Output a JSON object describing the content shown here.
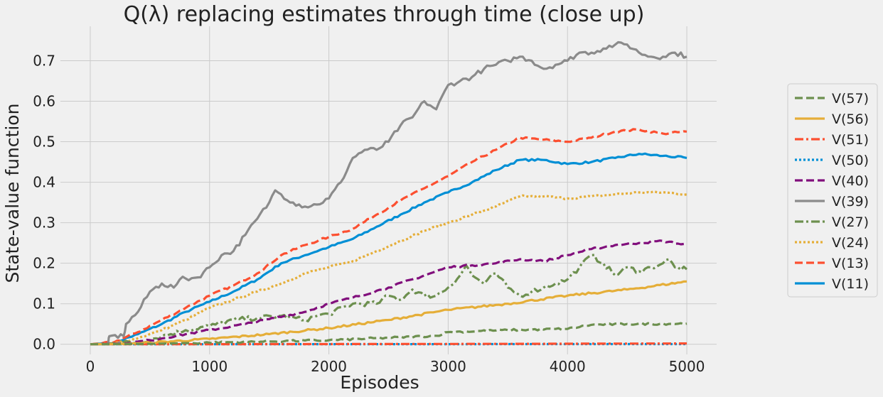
{
  "chart_data": {
    "type": "line",
    "title": "Q(λ) replacing estimates through time (close up)",
    "xlabel": "Episodes",
    "ylabel": "State-value function",
    "xlim": [
      -250,
      5250
    ],
    "ylim": [
      -0.025,
      0.785
    ],
    "xticks": [
      0,
      1000,
      2000,
      3000,
      4000,
      5000
    ],
    "yticks": [
      0.0,
      0.1,
      0.2,
      0.3,
      0.4,
      0.5,
      0.6,
      0.7
    ],
    "grid": true,
    "legend_position": "center-right",
    "series": [
      {
        "name": "V(57)",
        "color": "#6d904f",
        "dash": "dashed",
        "points": [
          [
            0,
            0
          ],
          [
            500,
            0.001
          ],
          [
            1000,
            0.004
          ],
          [
            1500,
            0.007
          ],
          [
            2000,
            0.01
          ],
          [
            2500,
            0.016
          ],
          [
            2900,
            0.021
          ],
          [
            3000,
            0.03
          ],
          [
            3500,
            0.035
          ],
          [
            4000,
            0.038
          ],
          [
            4200,
            0.048
          ],
          [
            4500,
            0.05
          ],
          [
            5000,
            0.051
          ]
        ]
      },
      {
        "name": "V(56)",
        "color": "#e5ae38",
        "dash": "solid",
        "points": [
          [
            0,
            0
          ],
          [
            300,
            0.001
          ],
          [
            500,
            0.004
          ],
          [
            1000,
            0.013
          ],
          [
            1500,
            0.025
          ],
          [
            2000,
            0.04
          ],
          [
            2500,
            0.06
          ],
          [
            3000,
            0.085
          ],
          [
            3500,
            0.1
          ],
          [
            4000,
            0.12
          ],
          [
            4500,
            0.135
          ],
          [
            5000,
            0.155
          ]
        ]
      },
      {
        "name": "V(51)",
        "color": "#fc4f30",
        "dash": "dashdot",
        "points": [
          [
            0,
            0
          ],
          [
            2000,
            0.0005
          ],
          [
            3500,
            0.001
          ],
          [
            5000,
            0.002
          ]
        ]
      },
      {
        "name": "V(50)",
        "color": "#008fd5",
        "dash": "dotted",
        "points": [
          [
            0,
            0
          ],
          [
            5000,
            0.0005
          ]
        ]
      },
      {
        "name": "V(40)",
        "color": "#810f7c",
        "dash": "dashed",
        "points": [
          [
            0,
            0
          ],
          [
            300,
            0.002
          ],
          [
            500,
            0.01
          ],
          [
            800,
            0.025
          ],
          [
            1000,
            0.035
          ],
          [
            1300,
            0.05
          ],
          [
            1500,
            0.062
          ],
          [
            1800,
            0.08
          ],
          [
            2000,
            0.1
          ],
          [
            2200,
            0.115
          ],
          [
            2500,
            0.14
          ],
          [
            2800,
            0.17
          ],
          [
            3000,
            0.19
          ],
          [
            3200,
            0.195
          ],
          [
            3400,
            0.2
          ],
          [
            3600,
            0.21
          ],
          [
            3800,
            0.205
          ],
          [
            4000,
            0.22
          ],
          [
            4200,
            0.235
          ],
          [
            4400,
            0.245
          ],
          [
            4600,
            0.25
          ],
          [
            4800,
            0.255
          ],
          [
            5000,
            0.245
          ]
        ]
      },
      {
        "name": "V(39)",
        "color": "#8b8b8b",
        "dash": "solid",
        "points": [
          [
            0,
            0
          ],
          [
            150,
            0.0
          ],
          [
            160,
            0.02
          ],
          [
            280,
            0.02
          ],
          [
            300,
            0.05
          ],
          [
            400,
            0.08
          ],
          [
            500,
            0.13
          ],
          [
            600,
            0.15
          ],
          [
            700,
            0.14
          ],
          [
            750,
            0.16
          ],
          [
            900,
            0.165
          ],
          [
            1000,
            0.19
          ],
          [
            1100,
            0.22
          ],
          [
            1200,
            0.23
          ],
          [
            1300,
            0.27
          ],
          [
            1400,
            0.31
          ],
          [
            1500,
            0.35
          ],
          [
            1550,
            0.38
          ],
          [
            1600,
            0.37
          ],
          [
            1700,
            0.35
          ],
          [
            1800,
            0.34
          ],
          [
            1900,
            0.345
          ],
          [
            2000,
            0.36
          ],
          [
            2100,
            0.4
          ],
          [
            2200,
            0.46
          ],
          [
            2300,
            0.48
          ],
          [
            2400,
            0.48
          ],
          [
            2500,
            0.5
          ],
          [
            2600,
            0.54
          ],
          [
            2700,
            0.56
          ],
          [
            2800,
            0.6
          ],
          [
            2900,
            0.58
          ],
          [
            3000,
            0.64
          ],
          [
            3100,
            0.65
          ],
          [
            3200,
            0.66
          ],
          [
            3300,
            0.68
          ],
          [
            3400,
            0.69
          ],
          [
            3500,
            0.7
          ],
          [
            3600,
            0.71
          ],
          [
            3700,
            0.7
          ],
          [
            3800,
            0.68
          ],
          [
            3900,
            0.69
          ],
          [
            4000,
            0.7
          ],
          [
            4100,
            0.72
          ],
          [
            4200,
            0.72
          ],
          [
            4300,
            0.73
          ],
          [
            4400,
            0.74
          ],
          [
            4500,
            0.74
          ],
          [
            4600,
            0.72
          ],
          [
            4700,
            0.71
          ],
          [
            4800,
            0.71
          ],
          [
            4900,
            0.72
          ],
          [
            5000,
            0.71
          ]
        ]
      },
      {
        "name": "V(27)",
        "color": "#6d904f",
        "dash": "dashdot",
        "points": [
          [
            0,
            0
          ],
          [
            400,
            0.005
          ],
          [
            600,
            0.02
          ],
          [
            800,
            0.035
          ],
          [
            1000,
            0.045
          ],
          [
            1200,
            0.06
          ],
          [
            1400,
            0.065
          ],
          [
            1600,
            0.07
          ],
          [
            1800,
            0.06
          ],
          [
            1900,
            0.07
          ],
          [
            2000,
            0.075
          ],
          [
            2200,
            0.1
          ],
          [
            2400,
            0.1
          ],
          [
            2500,
            0.12
          ],
          [
            2600,
            0.11
          ],
          [
            2700,
            0.135
          ],
          [
            2800,
            0.12
          ],
          [
            2900,
            0.12
          ],
          [
            3000,
            0.14
          ],
          [
            3100,
            0.17
          ],
          [
            3150,
            0.195
          ],
          [
            3200,
            0.17
          ],
          [
            3300,
            0.15
          ],
          [
            3400,
            0.175
          ],
          [
            3500,
            0.14
          ],
          [
            3600,
            0.12
          ],
          [
            3700,
            0.13
          ],
          [
            3800,
            0.14
          ],
          [
            3900,
            0.15
          ],
          [
            4000,
            0.16
          ],
          [
            4100,
            0.19
          ],
          [
            4200,
            0.22
          ],
          [
            4300,
            0.2
          ],
          [
            4400,
            0.17
          ],
          [
            4500,
            0.19
          ],
          [
            4600,
            0.18
          ],
          [
            4700,
            0.19
          ],
          [
            4800,
            0.2
          ],
          [
            4850,
            0.21
          ],
          [
            4900,
            0.19
          ],
          [
            5000,
            0.185
          ]
        ]
      },
      {
        "name": "V(24)",
        "color": "#e5ae38",
        "dash": "dotted",
        "points": [
          [
            0,
            0
          ],
          [
            200,
            0.002
          ],
          [
            400,
            0.015
          ],
          [
            600,
            0.035
          ],
          [
            800,
            0.06
          ],
          [
            1000,
            0.09
          ],
          [
            1200,
            0.11
          ],
          [
            1400,
            0.13
          ],
          [
            1600,
            0.15
          ],
          [
            1800,
            0.175
          ],
          [
            2000,
            0.19
          ],
          [
            2200,
            0.205
          ],
          [
            2400,
            0.23
          ],
          [
            2600,
            0.255
          ],
          [
            2800,
            0.28
          ],
          [
            3000,
            0.3
          ],
          [
            3200,
            0.32
          ],
          [
            3400,
            0.34
          ],
          [
            3600,
            0.365
          ],
          [
            3800,
            0.365
          ],
          [
            4000,
            0.36
          ],
          [
            4200,
            0.365
          ],
          [
            4400,
            0.37
          ],
          [
            4600,
            0.375
          ],
          [
            4800,
            0.375
          ],
          [
            5000,
            0.37
          ]
        ]
      },
      {
        "name": "V(13)",
        "color": "#fc4f30",
        "dash": "dashed",
        "points": [
          [
            0,
            0
          ],
          [
            200,
            0.005
          ],
          [
            400,
            0.03
          ],
          [
            600,
            0.06
          ],
          [
            800,
            0.09
          ],
          [
            1000,
            0.12
          ],
          [
            1200,
            0.145
          ],
          [
            1400,
            0.175
          ],
          [
            1600,
            0.22
          ],
          [
            1800,
            0.245
          ],
          [
            2000,
            0.265
          ],
          [
            2200,
            0.285
          ],
          [
            2400,
            0.32
          ],
          [
            2600,
            0.355
          ],
          [
            2800,
            0.385
          ],
          [
            3000,
            0.415
          ],
          [
            3200,
            0.45
          ],
          [
            3400,
            0.48
          ],
          [
            3600,
            0.51
          ],
          [
            3800,
            0.505
          ],
          [
            4000,
            0.5
          ],
          [
            4200,
            0.51
          ],
          [
            4400,
            0.525
          ],
          [
            4600,
            0.53
          ],
          [
            4800,
            0.52
          ],
          [
            5000,
            0.525
          ]
        ]
      },
      {
        "name": "V(11)",
        "color": "#008fd5",
        "dash": "solid",
        "points": [
          [
            0,
            0
          ],
          [
            200,
            0.004
          ],
          [
            400,
            0.025
          ],
          [
            600,
            0.05
          ],
          [
            800,
            0.08
          ],
          [
            1000,
            0.105
          ],
          [
            1200,
            0.13
          ],
          [
            1400,
            0.16
          ],
          [
            1600,
            0.2
          ],
          [
            1800,
            0.22
          ],
          [
            2000,
            0.24
          ],
          [
            2200,
            0.26
          ],
          [
            2400,
            0.29
          ],
          [
            2600,
            0.32
          ],
          [
            2800,
            0.35
          ],
          [
            3000,
            0.375
          ],
          [
            3200,
            0.4
          ],
          [
            3400,
            0.43
          ],
          [
            3600,
            0.455
          ],
          [
            3800,
            0.455
          ],
          [
            4000,
            0.445
          ],
          [
            4200,
            0.45
          ],
          [
            4400,
            0.46
          ],
          [
            4600,
            0.47
          ],
          [
            4800,
            0.465
          ],
          [
            5000,
            0.46
          ]
        ]
      }
    ]
  }
}
